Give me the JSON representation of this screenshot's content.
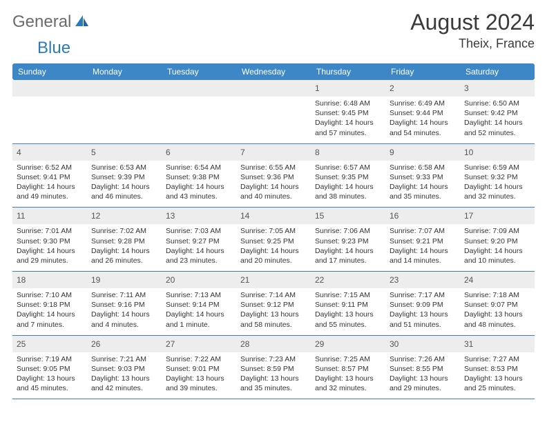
{
  "brand": {
    "part1": "General",
    "part2": "Blue"
  },
  "title": "August 2024",
  "subtitle": "Theix, France",
  "colors": {
    "header_band": "#3d87c7",
    "daynum_band": "#ededed",
    "week_border": "#3d7fb0",
    "title_color": "#3a3a3a",
    "logo_gray": "#6b6b6b",
    "logo_blue": "#2b7bba",
    "text_color": "#333333"
  },
  "typography": {
    "title_fontsize": 32,
    "subtitle_fontsize": 18,
    "dow_fontsize": 12,
    "daynum_fontsize": 12,
    "body_fontsize": 10.5
  },
  "days_of_week": [
    "Sunday",
    "Monday",
    "Tuesday",
    "Wednesday",
    "Thursday",
    "Friday",
    "Saturday"
  ],
  "weeks": [
    [
      {
        "n": "",
        "lines": [
          "",
          "",
          "",
          ""
        ]
      },
      {
        "n": "",
        "lines": [
          "",
          "",
          "",
          ""
        ]
      },
      {
        "n": "",
        "lines": [
          "",
          "",
          "",
          ""
        ]
      },
      {
        "n": "",
        "lines": [
          "",
          "",
          "",
          ""
        ]
      },
      {
        "n": "1",
        "lines": [
          "Sunrise: 6:48 AM",
          "Sunset: 9:45 PM",
          "Daylight: 14 hours",
          "and 57 minutes."
        ]
      },
      {
        "n": "2",
        "lines": [
          "Sunrise: 6:49 AM",
          "Sunset: 9:44 PM",
          "Daylight: 14 hours",
          "and 54 minutes."
        ]
      },
      {
        "n": "3",
        "lines": [
          "Sunrise: 6:50 AM",
          "Sunset: 9:42 PM",
          "Daylight: 14 hours",
          "and 52 minutes."
        ]
      }
    ],
    [
      {
        "n": "4",
        "lines": [
          "Sunrise: 6:52 AM",
          "Sunset: 9:41 PM",
          "Daylight: 14 hours",
          "and 49 minutes."
        ]
      },
      {
        "n": "5",
        "lines": [
          "Sunrise: 6:53 AM",
          "Sunset: 9:39 PM",
          "Daylight: 14 hours",
          "and 46 minutes."
        ]
      },
      {
        "n": "6",
        "lines": [
          "Sunrise: 6:54 AM",
          "Sunset: 9:38 PM",
          "Daylight: 14 hours",
          "and 43 minutes."
        ]
      },
      {
        "n": "7",
        "lines": [
          "Sunrise: 6:55 AM",
          "Sunset: 9:36 PM",
          "Daylight: 14 hours",
          "and 40 minutes."
        ]
      },
      {
        "n": "8",
        "lines": [
          "Sunrise: 6:57 AM",
          "Sunset: 9:35 PM",
          "Daylight: 14 hours",
          "and 38 minutes."
        ]
      },
      {
        "n": "9",
        "lines": [
          "Sunrise: 6:58 AM",
          "Sunset: 9:33 PM",
          "Daylight: 14 hours",
          "and 35 minutes."
        ]
      },
      {
        "n": "10",
        "lines": [
          "Sunrise: 6:59 AM",
          "Sunset: 9:32 PM",
          "Daylight: 14 hours",
          "and 32 minutes."
        ]
      }
    ],
    [
      {
        "n": "11",
        "lines": [
          "Sunrise: 7:01 AM",
          "Sunset: 9:30 PM",
          "Daylight: 14 hours",
          "and 29 minutes."
        ]
      },
      {
        "n": "12",
        "lines": [
          "Sunrise: 7:02 AM",
          "Sunset: 9:28 PM",
          "Daylight: 14 hours",
          "and 26 minutes."
        ]
      },
      {
        "n": "13",
        "lines": [
          "Sunrise: 7:03 AM",
          "Sunset: 9:27 PM",
          "Daylight: 14 hours",
          "and 23 minutes."
        ]
      },
      {
        "n": "14",
        "lines": [
          "Sunrise: 7:05 AM",
          "Sunset: 9:25 PM",
          "Daylight: 14 hours",
          "and 20 minutes."
        ]
      },
      {
        "n": "15",
        "lines": [
          "Sunrise: 7:06 AM",
          "Sunset: 9:23 PM",
          "Daylight: 14 hours",
          "and 17 minutes."
        ]
      },
      {
        "n": "16",
        "lines": [
          "Sunrise: 7:07 AM",
          "Sunset: 9:21 PM",
          "Daylight: 14 hours",
          "and 14 minutes."
        ]
      },
      {
        "n": "17",
        "lines": [
          "Sunrise: 7:09 AM",
          "Sunset: 9:20 PM",
          "Daylight: 14 hours",
          "and 10 minutes."
        ]
      }
    ],
    [
      {
        "n": "18",
        "lines": [
          "Sunrise: 7:10 AM",
          "Sunset: 9:18 PM",
          "Daylight: 14 hours",
          "and 7 minutes."
        ]
      },
      {
        "n": "19",
        "lines": [
          "Sunrise: 7:11 AM",
          "Sunset: 9:16 PM",
          "Daylight: 14 hours",
          "and 4 minutes."
        ]
      },
      {
        "n": "20",
        "lines": [
          "Sunrise: 7:13 AM",
          "Sunset: 9:14 PM",
          "Daylight: 14 hours",
          "and 1 minute."
        ]
      },
      {
        "n": "21",
        "lines": [
          "Sunrise: 7:14 AM",
          "Sunset: 9:12 PM",
          "Daylight: 13 hours",
          "and 58 minutes."
        ]
      },
      {
        "n": "22",
        "lines": [
          "Sunrise: 7:15 AM",
          "Sunset: 9:11 PM",
          "Daylight: 13 hours",
          "and 55 minutes."
        ]
      },
      {
        "n": "23",
        "lines": [
          "Sunrise: 7:17 AM",
          "Sunset: 9:09 PM",
          "Daylight: 13 hours",
          "and 51 minutes."
        ]
      },
      {
        "n": "24",
        "lines": [
          "Sunrise: 7:18 AM",
          "Sunset: 9:07 PM",
          "Daylight: 13 hours",
          "and 48 minutes."
        ]
      }
    ],
    [
      {
        "n": "25",
        "lines": [
          "Sunrise: 7:19 AM",
          "Sunset: 9:05 PM",
          "Daylight: 13 hours",
          "and 45 minutes."
        ]
      },
      {
        "n": "26",
        "lines": [
          "Sunrise: 7:21 AM",
          "Sunset: 9:03 PM",
          "Daylight: 13 hours",
          "and 42 minutes."
        ]
      },
      {
        "n": "27",
        "lines": [
          "Sunrise: 7:22 AM",
          "Sunset: 9:01 PM",
          "Daylight: 13 hours",
          "and 39 minutes."
        ]
      },
      {
        "n": "28",
        "lines": [
          "Sunrise: 7:23 AM",
          "Sunset: 8:59 PM",
          "Daylight: 13 hours",
          "and 35 minutes."
        ]
      },
      {
        "n": "29",
        "lines": [
          "Sunrise: 7:25 AM",
          "Sunset: 8:57 PM",
          "Daylight: 13 hours",
          "and 32 minutes."
        ]
      },
      {
        "n": "30",
        "lines": [
          "Sunrise: 7:26 AM",
          "Sunset: 8:55 PM",
          "Daylight: 13 hours",
          "and 29 minutes."
        ]
      },
      {
        "n": "31",
        "lines": [
          "Sunrise: 7:27 AM",
          "Sunset: 8:53 PM",
          "Daylight: 13 hours",
          "and 25 minutes."
        ]
      }
    ]
  ]
}
